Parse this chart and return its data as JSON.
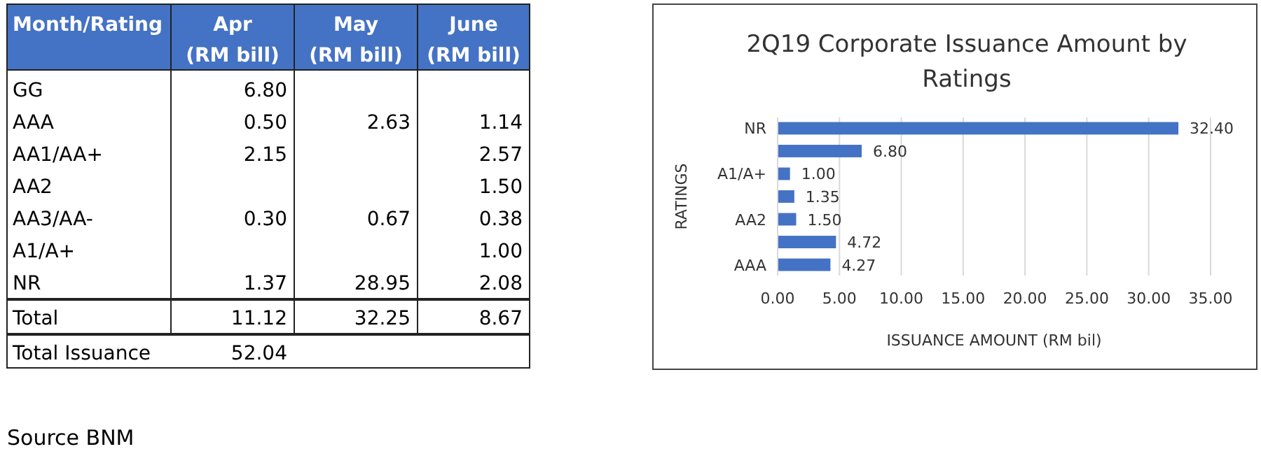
{
  "chart_data": [
    {
      "type": "heatmap",
      "ylabel": "Month/Rating",
      "categories": [
        "Apr (RM bill)",
        "May (RM bill)",
        "June (RM bill)"
      ],
      "y_categories": [
        "GG",
        "AAA",
        "AA1/AA+",
        "AA2",
        "AA3/AA-",
        "A1/A+",
        "NR",
        "Total",
        "Total Issuance"
      ],
      "cells": [
        [
          6.8,
          null,
          null
        ],
        [
          0.5,
          2.63,
          1.14
        ],
        [
          2.15,
          null,
          2.57
        ],
        [
          null,
          null,
          1.5
        ],
        [
          0.3,
          0.67,
          0.38
        ],
        [
          null,
          null,
          1.0
        ],
        [
          1.37,
          28.95,
          2.08
        ],
        [
          11.12,
          32.25,
          8.67
        ],
        [
          52.04,
          null,
          null
        ]
      ],
      "cell_labels": [
        [
          "6.80",
          null,
          null
        ],
        [
          "0.50",
          "2.63",
          "1.14"
        ],
        [
          "2.15",
          null,
          "2.57"
        ],
        [
          null,
          null,
          "1.50"
        ],
        [
          "0.30",
          "0.67",
          "0.38"
        ],
        [
          null,
          null,
          "1.00"
        ],
        [
          "1.37",
          "28.95",
          "2.08"
        ],
        [
          "11.12",
          "32.25",
          "8.67"
        ],
        [
          "52.04",
          null,
          null
        ]
      ],
      "annotations": [
        "Source BNM"
      ]
    },
    {
      "type": "bar",
      "orientation": "horizontal",
      "title": "2Q19 Corporate Issuance Amount by Ratings",
      "xlabel": "ISSUANCE AMOUNT (RM bil)",
      "ylabel": "RATINGS",
      "categories": [
        "NR",
        null,
        "A1/A+",
        null,
        "AA2",
        null,
        "AAA"
      ],
      "values": [
        32.4,
        6.8,
        1.0,
        1.35,
        1.5,
        4.72,
        4.27
      ],
      "value_labels": [
        "32.40",
        "6.80",
        "1.00",
        "1.35",
        "1.50",
        "4.72",
        "4.27"
      ],
      "color": "#4472c4",
      "xlim": [
        0,
        35
      ],
      "xticks": [
        {
          "value": 0,
          "label": "0.00"
        },
        {
          "value": 5,
          "label": "5.00"
        },
        {
          "value": 10,
          "label": "10.00"
        },
        {
          "value": 15,
          "label": "15.00"
        },
        {
          "value": 20,
          "label": "20.00"
        },
        {
          "value": 25,
          "label": "25.00"
        },
        {
          "value": 30,
          "label": "30.00"
        },
        {
          "value": 35,
          "label": "35.00"
        }
      ],
      "grid": "x"
    }
  ]
}
